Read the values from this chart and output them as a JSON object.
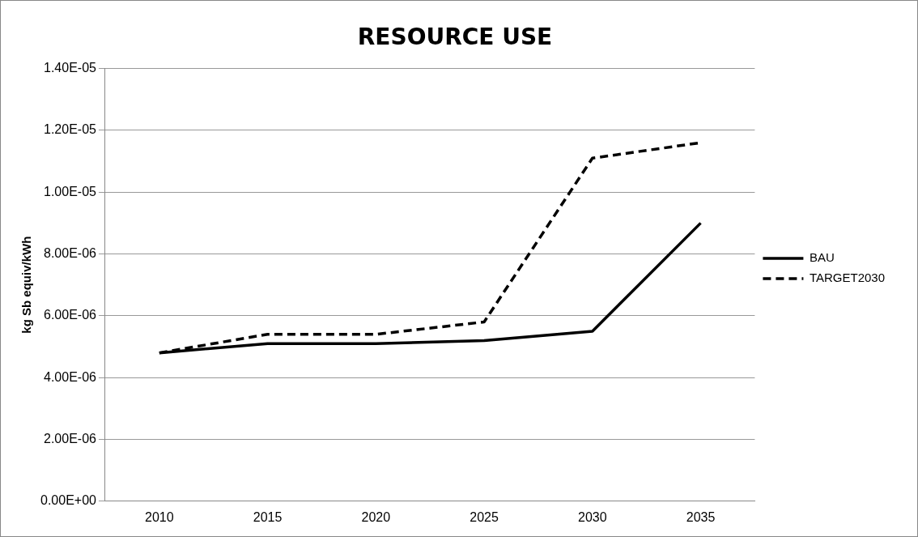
{
  "chart_data": {
    "type": "line",
    "title": "RESOURCE USE",
    "ylabel": "kg Sb equiv/kWh",
    "categories": [
      "2010",
      "2015",
      "2020",
      "2025",
      "2030",
      "2035"
    ],
    "series": [
      {
        "name": "BAU",
        "color": "#000000",
        "line_style": "solid",
        "values": [
          4.8e-06,
          5.1e-06,
          5.1e-06,
          5.2e-06,
          5.5e-06,
          9e-06
        ]
      },
      {
        "name": "TARGET2030",
        "color": "#000000",
        "line_style": "dashed",
        "values": [
          4.8e-06,
          5.4e-06,
          5.4e-06,
          5.8e-06,
          1.11e-05,
          1.16e-05
        ]
      }
    ],
    "ylim": [
      0,
      1.4e-05
    ],
    "yticks": [
      {
        "value": 0,
        "label": "0.00E+00"
      },
      {
        "value": 2e-06,
        "label": "2.00E-06"
      },
      {
        "value": 4e-06,
        "label": "4.00E-06"
      },
      {
        "value": 6e-06,
        "label": "6.00E-06"
      },
      {
        "value": 8e-06,
        "label": "8.00E-06"
      },
      {
        "value": 1e-05,
        "label": "1.00E-05"
      },
      {
        "value": 1.2e-05,
        "label": "1.20E-05"
      },
      {
        "value": 1.4e-05,
        "label": "1.40E-05"
      }
    ],
    "grid": "y",
    "legend": "right",
    "marker": "none"
  }
}
